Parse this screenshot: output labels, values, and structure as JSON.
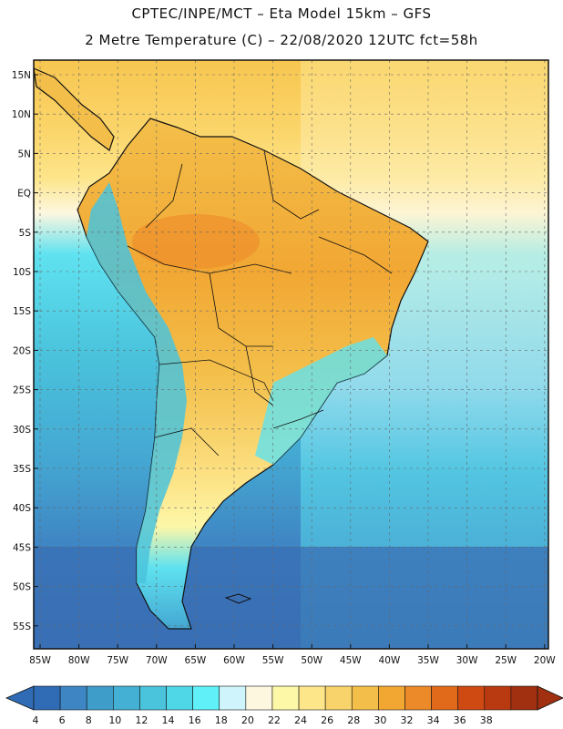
{
  "header": {
    "line1": "CPTEC/INPE/MCT –  Eta Model 15km – GFS",
    "line2": "2 Metre Temperature (C) – 22/08/2020 12UTC fct=58h"
  },
  "lat_labels": [
    "15N",
    "10N",
    "5N",
    "EQ",
    "5S",
    "10S",
    "15S",
    "20S",
    "25S",
    "30S",
    "35S",
    "40S",
    "45S",
    "50S",
    "55S"
  ],
  "lon_labels": [
    "85W",
    "80W",
    "75W",
    "70W",
    "65W",
    "60W",
    "55W",
    "50W",
    "45W",
    "40W",
    "35W",
    "30W",
    "25W",
    "20W"
  ],
  "colorbar": {
    "labels": [
      "4",
      "6",
      "8",
      "10",
      "12",
      "14",
      "16",
      "18",
      "20",
      "22",
      "24",
      "26",
      "28",
      "30",
      "32",
      "34",
      "36",
      "38"
    ],
    "colors": [
      "#2f6cb5",
      "#3e85c4",
      "#3f9dc9",
      "#44b0d3",
      "#4ac3dc",
      "#4fd7e8",
      "#5ff0f8",
      "#cff4fb",
      "#fdf7e0",
      "#fdf7a8",
      "#fde58a",
      "#f8d26a",
      "#f3bf4a",
      "#f2a733",
      "#ec8a2a",
      "#e06a1a",
      "#cf4a12",
      "#b93a10",
      "#a03010"
    ],
    "arrow_left_color": "#2f6cb5",
    "arrow_right_color": "#a03010"
  },
  "map": {
    "ocean_colors": [
      "#3a6fb4",
      "#3f86c4",
      "#44a7d2",
      "#4ac3dc",
      "#5fe2f0",
      "#cff4fb",
      "#fdf7e0"
    ],
    "land_colors": [
      "#f2a733",
      "#f3bf4a",
      "#f8d26a",
      "#fde58a",
      "#5fe2f0",
      "#44a7d2"
    ]
  }
}
